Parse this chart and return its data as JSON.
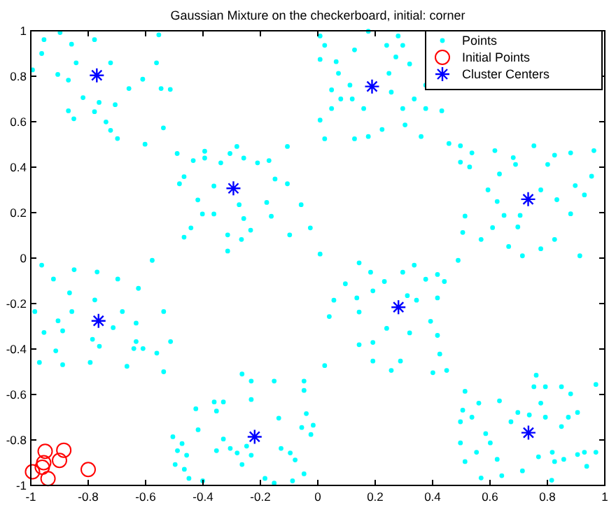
{
  "chart_data": {
    "type": "scatter",
    "title": "Gaussian Mixture on the checkerboard, initial: corner",
    "xlim": [
      -1,
      1
    ],
    "ylim": [
      -1,
      1
    ],
    "xticks": [
      -1,
      -0.8,
      -0.6,
      -0.4,
      -0.2,
      0,
      0.2,
      0.4,
      0.6,
      0.8,
      1
    ],
    "yticks": [
      -1,
      -0.8,
      -0.6,
      -0.4,
      -0.2,
      0,
      0.2,
      0.4,
      0.6,
      0.8,
      1
    ],
    "grid": false,
    "legend": "top right",
    "series": [
      {
        "name": "Points",
        "color": "#00ffff",
        "marker": "circle",
        "x": [
          -0.954,
          -0.898,
          -0.858,
          -0.962,
          -0.906,
          -0.869,
          -0.842,
          -0.722,
          -0.778,
          -0.818,
          -0.762,
          -0.706,
          -0.738,
          -0.722,
          -0.698,
          -0.869,
          -0.85,
          -0.658,
          -0.61,
          -0.562,
          -0.554,
          -0.546,
          -0.514,
          -0.602,
          -0.538,
          -0.994,
          -0.778,
          -0.49,
          -0.482,
          -0.466,
          -0.434,
          -0.394,
          -0.418,
          -0.402,
          -0.362,
          -0.442,
          -0.466,
          -0.394,
          -0.338,
          -0.306,
          -0.282,
          -0.258,
          -0.21,
          -0.17,
          -0.149,
          -0.178,
          -0.162,
          -0.274,
          -0.258,
          -0.234,
          -0.314,
          -0.314,
          -0.266,
          -0.106,
          -0.098,
          -0.026,
          -0.058,
          -0.106,
          -0.362,
          0.008,
          0.024,
          0.008,
          0.064,
          0.072,
          0.048,
          0.08,
          0.048,
          0.112,
          0.12,
          0.16,
          0.128,
          0.176,
          0.008,
          0.024,
          0.128,
          0.176,
          0.24,
          0.28,
          0.296,
          0.272,
          0.248,
          0.256,
          0.296,
          0.304,
          0.336,
          0.376,
          0.376,
          0.36,
          0.432,
          0.224,
          0.32,
          0.457,
          0.497,
          0.537,
          0.497,
          0.529,
          0.617,
          0.681,
          0.689,
          0.633,
          0.593,
          0.625,
          0.649,
          0.705,
          0.697,
          0.753,
          0.801,
          0.825,
          0.881,
          0.962,
          0.954,
          0.897,
          0.929,
          0.833,
          0.777,
          0.881,
          0.825,
          0.913,
          0.713,
          0.665,
          0.569,
          0.513,
          0.505,
          0.609,
          0.777,
          -0.962,
          -0.921,
          -0.849,
          -0.865,
          -0.857,
          -0.905,
          -0.986,
          -0.954,
          -0.889,
          -0.913,
          -0.889,
          -0.97,
          -0.777,
          -0.769,
          -0.697,
          -0.681,
          -0.713,
          -0.785,
          -0.793,
          -0.761,
          -0.625,
          -0.577,
          -0.633,
          -0.633,
          -0.609,
          -0.641,
          -0.561,
          -0.665,
          -0.537,
          -0.513,
          -0.537,
          -0.505,
          -0.489,
          -0.473,
          -0.457,
          -0.497,
          -0.465,
          -0.449,
          -0.401,
          -0.425,
          -0.417,
          -0.361,
          -0.353,
          -0.329,
          -0.353,
          -0.329,
          -0.305,
          -0.281,
          -0.264,
          -0.232,
          -0.232,
          -0.248,
          -0.232,
          -0.264,
          -0.184,
          -0.152,
          -0.136,
          -0.128,
          -0.096,
          -0.079,
          -0.056,
          -0.04,
          -0.016,
          -0.024,
          -0.048,
          -0.088,
          -0.048,
          -0.048,
          -0.152,
          0.008,
          0.096,
          0.144,
          0.184,
          0.192,
          0.232,
          0.136,
          0.144,
          0.056,
          0.04,
          0.144,
          0.192,
          0.256,
          0.192,
          0.24,
          0.296,
          0.336,
          0.376,
          0.312,
          0.344,
          0.417,
          0.441,
          0.489,
          0.417,
          0.393,
          0.417,
          0.425,
          0.401,
          0.449,
          0.288,
          0.32,
          0.024,
          0.513,
          0.505,
          0.497,
          0.561,
          0.537,
          0.585,
          0.601,
          0.633,
          0.497,
          0.553,
          0.513,
          0.569,
          0.625,
          0.641,
          0.673,
          0.697,
          0.737,
          0.761,
          0.753,
          0.793,
          0.777,
          0.793,
          0.769,
          0.713,
          0.817,
          0.825,
          0.849,
          0.881,
          0.849,
          0.873,
          0.905,
          0.857,
          0.905,
          0.929,
          0.937,
          0.969,
          0.969,
          0.815
        ],
        "values": [
          0.961,
          0.992,
          0.941,
          0.9,
          0.808,
          0.783,
          0.859,
          0.859,
          0.644,
          0.706,
          0.685,
          0.675,
          0.599,
          0.562,
          0.526,
          0.648,
          0.613,
          0.746,
          0.787,
          0.859,
          0.982,
          0.746,
          0.742,
          0.501,
          0.573,
          0.828,
          0.961,
          0.46,
          0.327,
          0.358,
          0.429,
          0.47,
          0.256,
          0.194,
          0.194,
          0.133,
          0.092,
          0.44,
          0.419,
          0.46,
          0.491,
          0.44,
          0.419,
          0.429,
          0.348,
          0.245,
          0.184,
          0.235,
          0.174,
          0.123,
          0.102,
          0.031,
          0.082,
          0.327,
          0.102,
          0.133,
          0.235,
          0.491,
          0.317,
          0.977,
          0.936,
          0.874,
          0.864,
          0.813,
          0.74,
          0.7,
          0.658,
          0.761,
          0.7,
          0.658,
          0.525,
          0.535,
          0.607,
          0.525,
          0.916,
          0.998,
          0.936,
          0.977,
          0.936,
          0.885,
          0.813,
          0.73,
          0.658,
          0.586,
          0.7,
          0.658,
          0.761,
          0.535,
          0.648,
          0.566,
          0.854,
          0.504,
          0.494,
          0.463,
          0.422,
          0.401,
          0.473,
          0.442,
          0.412,
          0.37,
          0.3,
          0.249,
          0.188,
          0.188,
          0.137,
          0.494,
          0.412,
          0.453,
          0.463,
          0.473,
          0.36,
          0.319,
          0.278,
          0.257,
          0.3,
          0.195,
          0.082,
          0.01,
          0.01,
          0.051,
          0.082,
          0.185,
          0.113,
          0.134,
          0.041,
          -0.031,
          -0.092,
          -0.051,
          -0.153,
          -0.235,
          -0.276,
          -0.235,
          -0.327,
          -0.32,
          -0.408,
          -0.469,
          -0.459,
          -0.184,
          -0.061,
          -0.092,
          -0.235,
          -0.306,
          -0.357,
          -0.459,
          -0.388,
          -0.133,
          -0.01,
          -0.286,
          -0.367,
          -0.398,
          -0.398,
          -0.418,
          -0.476,
          -0.235,
          -0.367,
          -0.5,
          -0.786,
          -0.847,
          -0.816,
          -0.867,
          -0.908,
          -0.929,
          -0.969,
          -0.98,
          -0.663,
          -0.755,
          -0.633,
          -0.673,
          -0.633,
          -0.847,
          -0.796,
          -0.837,
          -0.857,
          -0.51,
          -0.622,
          -0.541,
          -0.827,
          -0.867,
          -0.908,
          -0.969,
          -0.541,
          -0.704,
          -0.837,
          -0.857,
          -0.888,
          -0.745,
          -0.684,
          -0.735,
          -0.776,
          -0.949,
          -0.98,
          -0.541,
          -0.582,
          -0.99,
          0.018,
          -0.113,
          -0.021,
          -0.062,
          -0.144,
          -0.103,
          -0.175,
          -0.237,
          -0.185,
          -0.257,
          -0.381,
          -0.453,
          -0.494,
          -0.371,
          -0.309,
          -0.062,
          -0.031,
          -0.093,
          -0.165,
          -0.185,
          -0.072,
          -0.103,
          -0.01,
          -0.175,
          -0.278,
          -0.34,
          -0.422,
          -0.504,
          -0.494,
          -0.453,
          -0.329,
          -0.473,
          -0.586,
          -0.669,
          -0.72,
          -0.638,
          -0.7,
          -0.772,
          -0.813,
          -0.628,
          -0.813,
          -0.854,
          -0.895,
          -0.967,
          -0.885,
          -0.957,
          -0.72,
          -0.679,
          -0.69,
          -0.515,
          -0.566,
          -0.566,
          -0.638,
          -0.7,
          -0.874,
          -0.936,
          -0.854,
          -0.895,
          -0.566,
          -0.597,
          -0.741,
          -0.7,
          -0.679,
          -0.885,
          -0.864,
          -0.854,
          -0.916,
          -0.556,
          -0.854,
          -0.977
        ]
      },
      {
        "name": "Initial Points",
        "color": "#ff0000",
        "marker": "circle",
        "x": [
          -0.994,
          -0.95,
          -0.955,
          -0.96,
          -0.94,
          -0.9,
          -0.885,
          -0.8
        ],
        "values": [
          -0.94,
          -0.85,
          -0.9,
          -0.92,
          -0.97,
          -0.89,
          -0.845,
          -0.93
        ]
      },
      {
        "name": "Cluster Centers",
        "color": "#0000ff",
        "marker": "cross",
        "x": [
          -0.77,
          -0.294,
          0.189,
          0.733,
          -0.764,
          -0.22,
          0.281,
          0.734
        ],
        "values": [
          0.804,
          0.307,
          0.755,
          0.259,
          -0.276,
          -0.786,
          -0.216,
          -0.768
        ]
      }
    ]
  }
}
